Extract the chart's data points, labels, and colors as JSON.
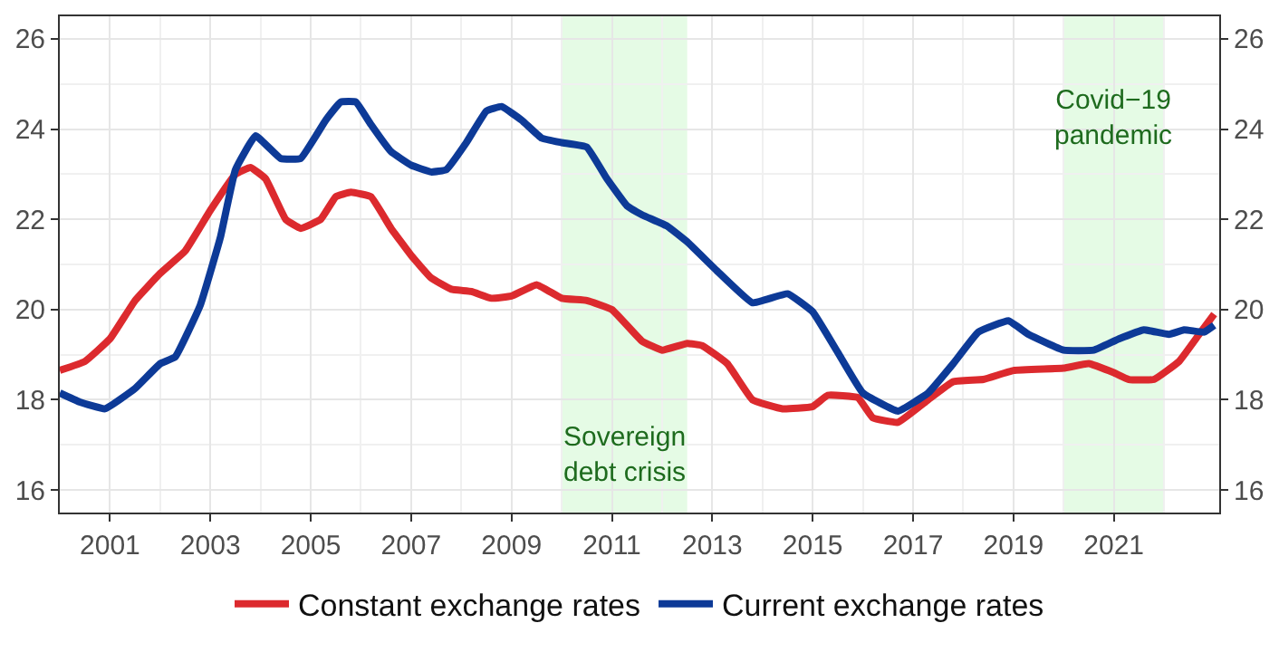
{
  "chart_data": {
    "type": "line",
    "xlim": [
      2000,
      2023.1
    ],
    "xticks": [
      {
        "value": 2000,
        "label": null
      },
      2001,
      {
        "value": 2002,
        "label": null
      },
      2003,
      {
        "value": 2004,
        "label": null
      },
      2005,
      {
        "value": 2006,
        "label": null
      },
      2007,
      {
        "value": 2008,
        "label": null
      },
      2009,
      {
        "value": 2010,
        "label": null
      },
      2011,
      {
        "value": 2012,
        "label": null
      },
      2013,
      {
        "value": 2014,
        "label": null
      },
      2015,
      {
        "value": 2016,
        "label": null
      },
      2017,
      {
        "value": 2018,
        "label": null
      },
      2019,
      {
        "value": 2020,
        "label": null
      },
      2021,
      {
        "value": 2022,
        "label": null
      }
    ],
    "ylim": [
      15.5,
      26.5
    ],
    "yticks": [
      16,
      {
        "value": 17,
        "label": null
      },
      18,
      {
        "value": 19,
        "label": null
      },
      20,
      {
        "value": 21,
        "label": null
      },
      22,
      {
        "value": 23,
        "label": null
      },
      24,
      {
        "value": 25,
        "label": null
      },
      26
    ],
    "y2lim": [
      15.5,
      26.5
    ],
    "y2ticks": [
      16,
      18,
      20,
      22,
      24,
      26
    ],
    "grid": true,
    "legend": "bottom",
    "line_style": "solid",
    "marker": "none",
    "bands": [
      {
        "axis": "x",
        "from": 2010.0,
        "to": 2012.5,
        "color": "#e5fbe5",
        "label": "Sovereign\ndebt crisis"
      },
      {
        "axis": "x",
        "from": 2020.0,
        "to": 2022.0,
        "color": "#e5fbe5",
        "label": "Covid−19\npandemic"
      }
    ],
    "series": [
      {
        "name": "Constant exchange rates",
        "color": "#dc2a2e",
        "x": [
          2000.0,
          2000.5,
          2001.0,
          2001.5,
          2002.0,
          2002.5,
          2003.0,
          2003.5,
          2003.8,
          2004.1,
          2004.5,
          2004.8,
          2005.2,
          2005.5,
          2005.8,
          2006.2,
          2006.6,
          2007.0,
          2007.4,
          2007.8,
          2008.2,
          2008.6,
          2009.0,
          2009.5,
          2010.0,
          2010.5,
          2011.0,
          2011.6,
          2012.0,
          2012.5,
          2012.8,
          2013.3,
          2013.8,
          2014.4,
          2015.0,
          2015.3,
          2015.9,
          2016.2,
          2016.7,
          2017.3,
          2017.8,
          2018.4,
          2019.0,
          2020.0,
          2020.5,
          2021.0,
          2021.3,
          2021.8,
          2022.3,
          2022.7,
          2023.0
        ],
        "values": [
          18.65,
          18.85,
          19.35,
          20.2,
          20.8,
          21.3,
          22.2,
          23.0,
          23.15,
          22.9,
          22.0,
          21.8,
          22.0,
          22.5,
          22.6,
          22.5,
          21.8,
          21.2,
          20.7,
          20.45,
          20.4,
          20.25,
          20.3,
          20.55,
          20.25,
          20.2,
          20.0,
          19.3,
          19.1,
          19.25,
          19.2,
          18.8,
          18.0,
          17.8,
          17.85,
          18.1,
          18.05,
          17.6,
          17.5,
          18.0,
          18.4,
          18.45,
          18.65,
          18.7,
          18.8,
          18.6,
          18.45,
          18.45,
          18.85,
          19.45,
          19.9
        ]
      },
      {
        "name": "Current exchange rates",
        "color": "#0d3a97",
        "x": [
          2000.0,
          2000.4,
          2000.9,
          2001.5,
          2002.0,
          2002.3,
          2002.8,
          2003.2,
          2003.5,
          2003.9,
          2004.4,
          2004.8,
          2005.3,
          2005.6,
          2005.9,
          2006.2,
          2006.6,
          2007.0,
          2007.4,
          2007.7,
          2008.1,
          2008.5,
          2008.8,
          2009.2,
          2009.6,
          2010.0,
          2010.5,
          2010.9,
          2011.3,
          2011.6,
          2012.1,
          2012.5,
          2013.1,
          2013.8,
          2014.5,
          2015.0,
          2015.5,
          2016.0,
          2016.7,
          2017.3,
          2017.8,
          2018.3,
          2018.9,
          2019.3,
          2020.0,
          2020.6,
          2021.1,
          2021.6,
          2022.1,
          2022.4,
          2022.8,
          2023.0
        ],
        "values": [
          18.15,
          17.95,
          17.8,
          18.25,
          18.8,
          18.95,
          20.1,
          21.6,
          23.1,
          23.85,
          23.35,
          23.35,
          24.2,
          24.6,
          24.6,
          24.1,
          23.5,
          23.2,
          23.05,
          23.1,
          23.7,
          24.4,
          24.5,
          24.2,
          23.8,
          23.7,
          23.6,
          22.9,
          22.3,
          22.1,
          21.85,
          21.5,
          20.85,
          20.15,
          20.35,
          19.95,
          19.05,
          18.15,
          17.75,
          18.15,
          18.8,
          19.5,
          19.75,
          19.45,
          19.1,
          19.1,
          19.35,
          19.55,
          19.45,
          19.55,
          19.5,
          19.65
        ]
      }
    ]
  }
}
